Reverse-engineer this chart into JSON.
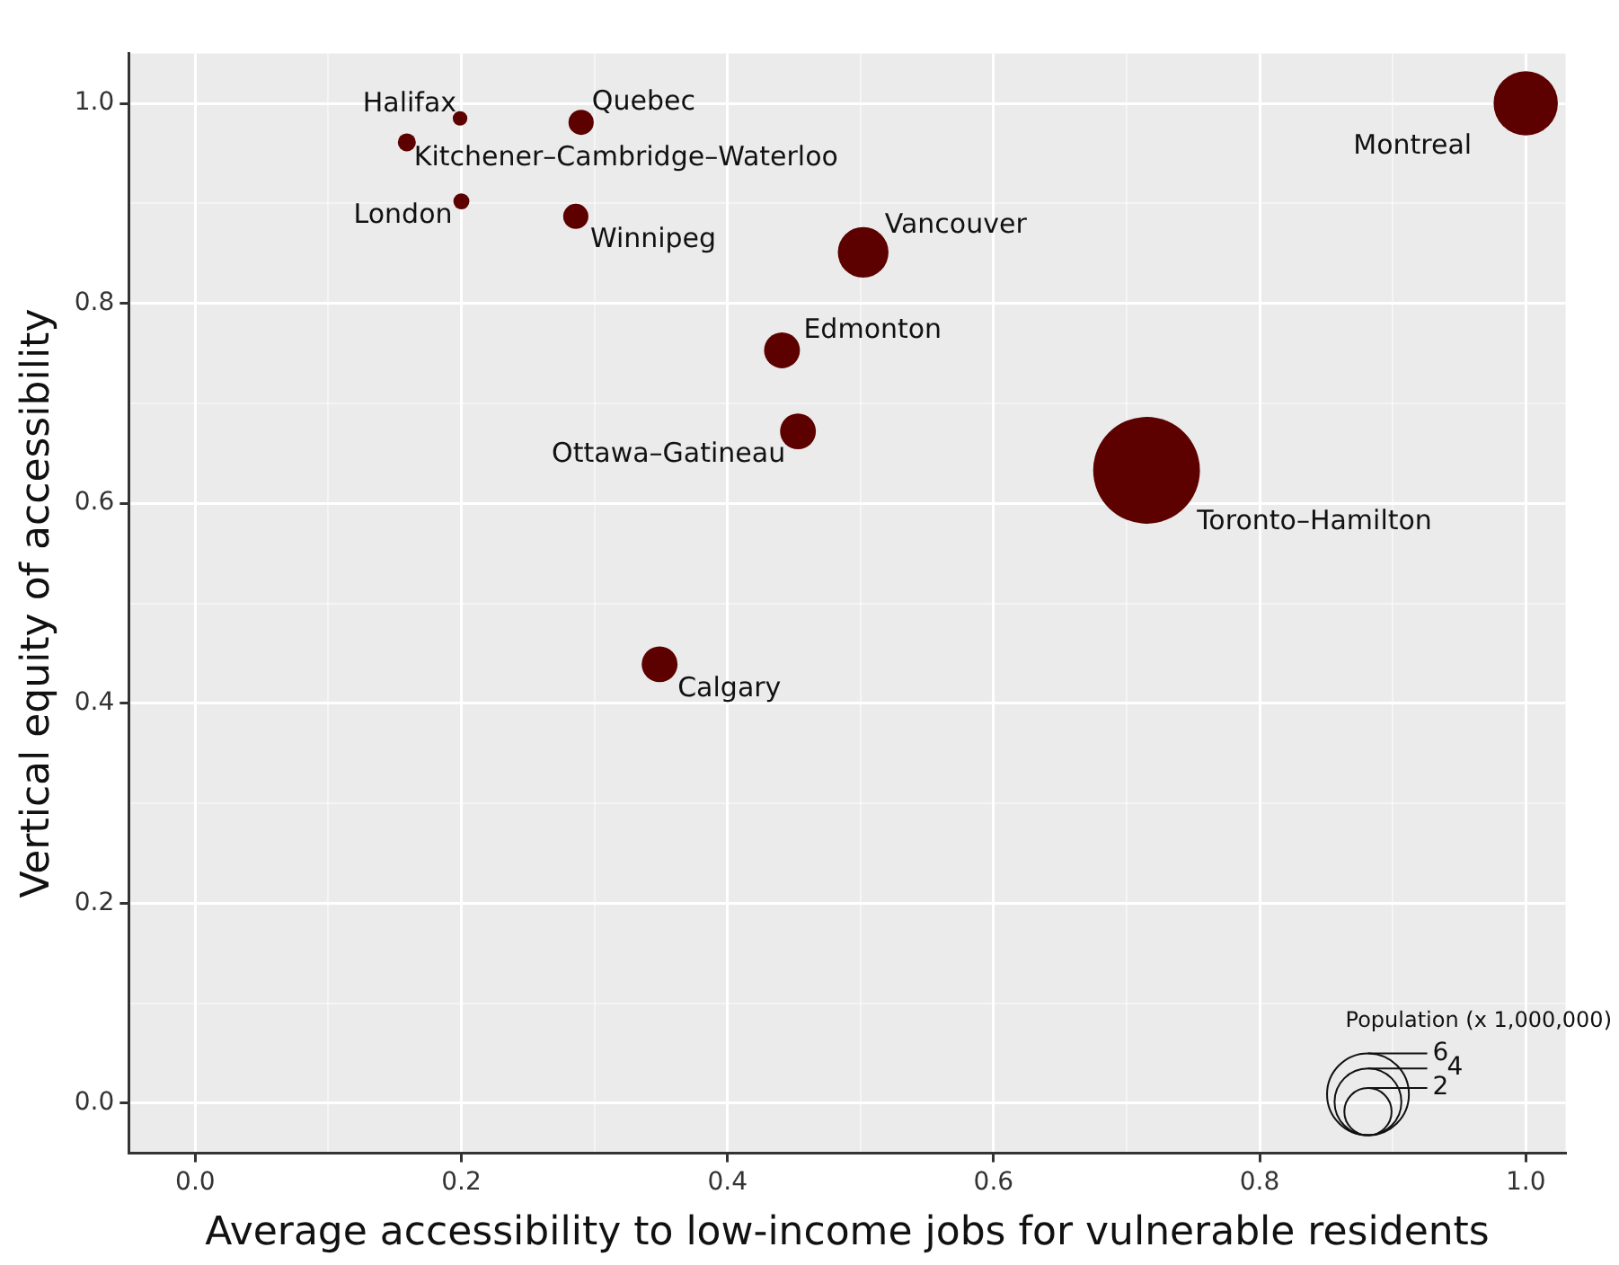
{
  "chart_data": {
    "type": "bubble",
    "xlabel": "Average accessibility to low-income jobs for vulnerable residents",
    "ylabel": "Vertical equity of accessibility",
    "legend_title": "Population (x 1,000,000)",
    "size_legend": [
      2,
      4,
      6
    ],
    "xlim": [
      -0.05,
      1.03
    ],
    "ylim": [
      -0.05,
      1.05
    ],
    "xticks": [
      {
        "value": 0,
        "label": "0.0"
      },
      {
        "value": 0.1,
        "label": null
      },
      0.2,
      {
        "value": 0.3,
        "label": null
      },
      0.4,
      {
        "value": 0.5,
        "label": null
      },
      0.6,
      {
        "value": 0.7,
        "label": null
      },
      0.8,
      {
        "value": 0.9,
        "label": null
      },
      {
        "value": 1,
        "label": "1.0"
      }
    ],
    "yticks": [
      {
        "value": 0,
        "label": "0.0"
      },
      {
        "value": 0.1,
        "label": null
      },
      0.2,
      {
        "value": 0.3,
        "label": null
      },
      0.4,
      {
        "value": 0.5,
        "label": null
      },
      0.6,
      {
        "value": 0.7,
        "label": null
      },
      0.8,
      {
        "value": 0.9,
        "label": null
      },
      {
        "value": 1,
        "label": "1.0"
      }
    ],
    "grid": true,
    "legend": false,
    "series": [
      {
        "name": "Montreal",
        "color": "#5c0000",
        "x": [
          1.0
        ],
        "values": [
          1.0
        ],
        "sizes": [
          3.7
        ]
      },
      {
        "name": "Toronto–Hamilton",
        "color": "#5c0000",
        "x": [
          0.715
        ],
        "values": [
          0.633
        ],
        "sizes": [
          10.2
        ]
      },
      {
        "name": "Vancouver",
        "color": "#5c0000",
        "x": [
          0.502
        ],
        "values": [
          0.851
        ],
        "sizes": [
          2.3
        ]
      },
      {
        "name": "Edmonton",
        "color": "#5c0000",
        "x": [
          0.441
        ],
        "values": [
          0.753
        ],
        "sizes": [
          1.15
        ]
      },
      {
        "name": "Ottawa–Gatineau",
        "color": "#5c0000",
        "x": [
          0.453
        ],
        "values": [
          0.672
        ],
        "sizes": [
          1.15
        ]
      },
      {
        "name": "Calgary",
        "color": "#5c0000",
        "x": [
          0.349
        ],
        "values": [
          0.439
        ],
        "sizes": [
          1.15
        ]
      },
      {
        "name": "Quebec",
        "color": "#5c0000",
        "x": [
          0.29
        ],
        "values": [
          0.981
        ],
        "sizes": [
          0.57
        ]
      },
      {
        "name": "Winnipeg",
        "color": "#5c0000",
        "x": [
          0.286
        ],
        "values": [
          0.887
        ],
        "sizes": [
          0.57
        ]
      },
      {
        "name": "Halifax",
        "color": "#5c0000",
        "x": [
          0.199
        ],
        "values": [
          0.985
        ],
        "sizes": [
          0.19
        ]
      },
      {
        "name": "Kitchener–Cambridge–Waterloo",
        "color": "#5c0000",
        "x": [
          0.159
        ],
        "values": [
          0.961
        ],
        "sizes": [
          0.29
        ]
      },
      {
        "name": "London",
        "color": "#5c0000",
        "x": [
          0.2
        ],
        "values": [
          0.902
        ],
        "sizes": [
          0.23
        ]
      }
    ]
  }
}
